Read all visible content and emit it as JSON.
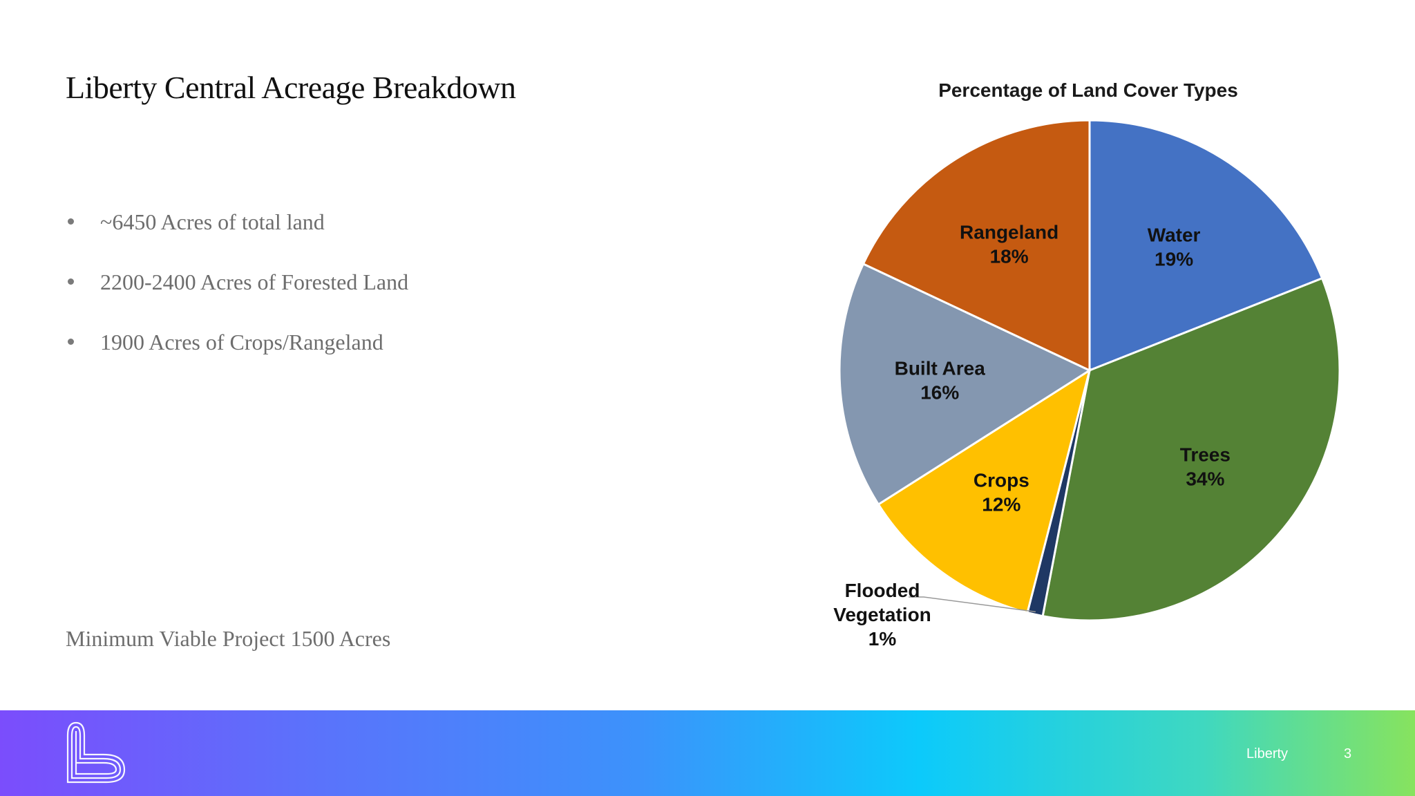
{
  "slide": {
    "title": "Liberty Central Acreage Breakdown",
    "bullets": [
      "~6450 Acres of total land",
      "2200-2400 Acres of Forested Land",
      "1900 Acres of Crops/Rangeland"
    ],
    "footnote": "Minimum Viable Project 1500 Acres"
  },
  "footer": {
    "brand": "Liberty",
    "page_number": "3"
  },
  "colors": {
    "footer_gradient": [
      "#7b4dfc",
      "#3c92fb",
      "#0ccafb",
      "#87e35e"
    ]
  },
  "chart_data": {
    "type": "pie",
    "title": "Percentage of Land Cover Types",
    "slices": [
      {
        "label": "Water",
        "value": 19,
        "value_label": "19%",
        "color": "#4472c4"
      },
      {
        "label": "Trees",
        "value": 34,
        "value_label": "34%",
        "color": "#548235"
      },
      {
        "label": "Flooded Vegetation",
        "label_lines": [
          "Flooded",
          "Vegetation"
        ],
        "value": 1,
        "value_label": "1%",
        "color": "#1f3864"
      },
      {
        "label": "Crops",
        "value": 12,
        "value_label": "12%",
        "color": "#ffc000"
      },
      {
        "label": "Built Area",
        "value": 16,
        "value_label": "16%",
        "color": "#8497b0"
      },
      {
        "label": "Rangeland",
        "value": 18,
        "value_label": "18%",
        "color": "#c55a11"
      }
    ]
  }
}
